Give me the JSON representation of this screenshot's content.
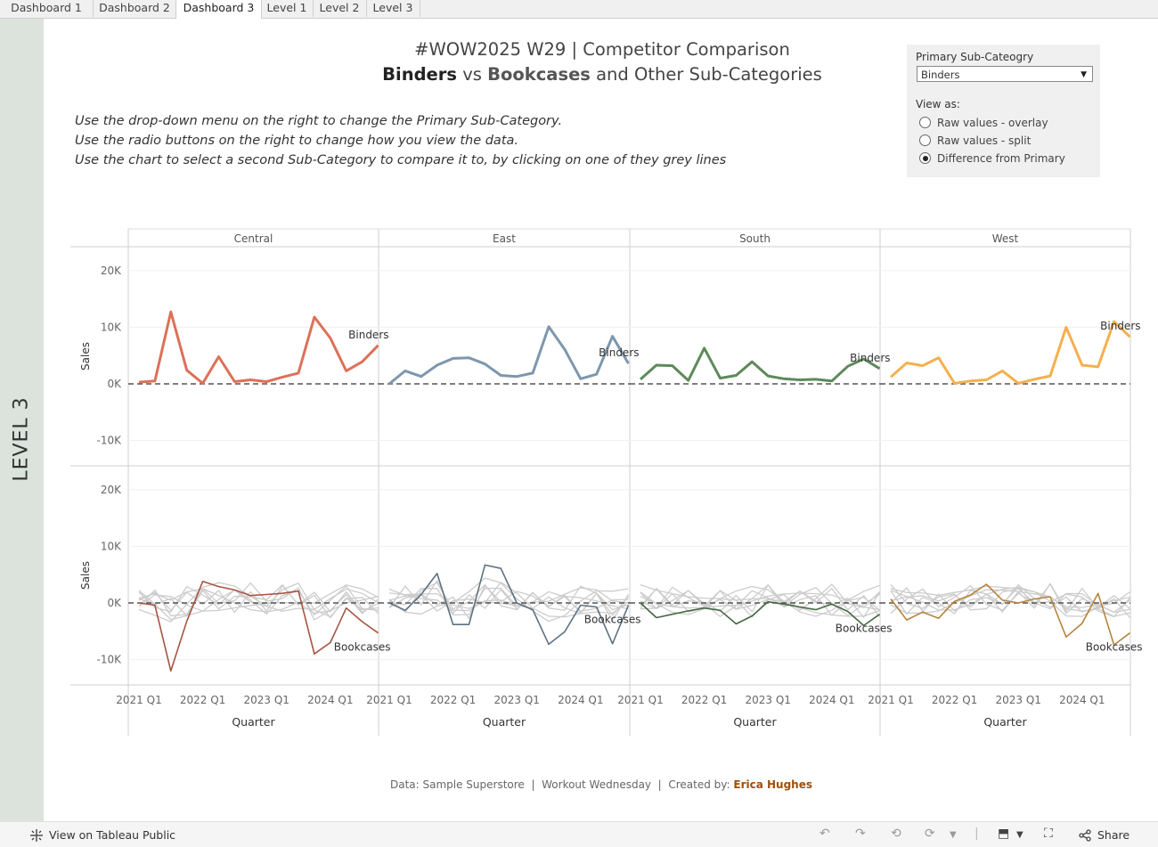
{
  "tabs": [
    "Dashboard 1",
    "Dashboard 2",
    "Dashboard 3",
    "Level 1",
    "Level 2",
    "Level 3"
  ],
  "active_tab": "Dashboard 3",
  "sidebar_label": "LEVEL 3",
  "title": {
    "line1": "#WOW2025 W29 | Competitor Comparison",
    "primary": "Binders",
    "vs": "vs",
    "secondary": "Bookcases",
    "rest": "and Other Sub-Categories"
  },
  "instructions": [
    "Use the drop-down menu on the right to change the Primary Sub-Category.",
    "Use the radio buttons on the right to change how you view the data.",
    "Use the chart to select a second Sub-Category to compare it to, by clicking on one of they grey lines"
  ],
  "controls": {
    "primary_label": "Primary Sub-Cateogry",
    "primary_value": "Binders",
    "view_label": "View as:",
    "view_options": [
      "Raw values - overlay",
      "Raw values - split",
      "Difference from Primary"
    ],
    "view_selected": 2
  },
  "footer": {
    "data": "Data: Sample Superstore",
    "wow": "Workout Wednesday",
    "created_by": "Created by:",
    "author": "Erica Hughes"
  },
  "bottom_bar": {
    "view_on": "View on Tableau Public",
    "share": "Share",
    "icons": [
      "undo-icon",
      "redo-icon",
      "revert-icon",
      "refresh-icon",
      "download-icon",
      "fullscreen-icon",
      "share-icon"
    ]
  },
  "chart_data": {
    "type": "line",
    "regions": [
      "Central",
      "East",
      "South",
      "West"
    ],
    "ylabel": "Sales",
    "xlabel": "Quarter",
    "x": [
      "2021 Q1",
      "2021 Q2",
      "2021 Q3",
      "2021 Q4",
      "2022 Q1",
      "2022 Q2",
      "2022 Q3",
      "2022 Q4",
      "2023 Q1",
      "2023 Q2",
      "2023 Q3",
      "2023 Q4",
      "2024 Q1",
      "2024 Q2",
      "2024 Q3",
      "2024 Q4"
    ],
    "x_tick_labels": [
      "2021 Q1",
      "2022 Q1",
      "2023 Q1",
      "2024 Q1"
    ],
    "y_ticks": [
      20000,
      10000,
      0,
      -10000
    ],
    "y_tick_labels": [
      "20K",
      "10K",
      "0K",
      "-10K"
    ],
    "ylim": [
      -14000,
      24000
    ],
    "colors": {
      "Central": "#dc7158",
      "East": "#7d97ad",
      "South": "#5d8a5a",
      "West": "#f4b04e",
      "grey": "#cccccc",
      "zero": "#555555"
    },
    "primary": {
      "name": "Binders",
      "Central": [
        300,
        500,
        12700,
        2400,
        100,
        4800,
        400,
        700,
        400,
        1200,
        1900,
        11800,
        8100,
        2300,
        3900,
        6800
      ],
      "East": [
        0,
        2300,
        1300,
        3300,
        4500,
        4600,
        3500,
        1500,
        1300,
        1900,
        10100,
        6100,
        900,
        1700,
        8400,
        3600
      ],
      "South": [
        800,
        3300,
        3200,
        600,
        6300,
        1000,
        1500,
        3900,
        1400,
        900,
        700,
        800,
        500,
        3100,
        4400,
        2700
      ],
      "West": [
        1200,
        3700,
        3200,
        4600,
        100,
        500,
        700,
        2300,
        100,
        800,
        1400,
        10000,
        3300,
        3000,
        11000,
        8300
      ]
    },
    "secondary": {
      "name": "Bookcases",
      "Central": [
        0,
        -400,
        -12000,
        -3200,
        3800,
        2900,
        2300,
        1300,
        1500,
        1700,
        2100,
        -9000,
        -7000,
        -900,
        -3300,
        -5300
      ],
      "East": [
        0,
        -1300,
        1500,
        5200,
        -3800,
        -3800,
        6700,
        6100,
        0,
        -1200,
        -7300,
        -5100,
        -400,
        -700,
        -7200,
        -400
      ],
      "South": [
        0,
        -2600,
        -2000,
        -1400,
        -900,
        -1300,
        -3700,
        -2300,
        200,
        -200,
        -700,
        -1200,
        -200,
        -1500,
        -4000,
        -2000
      ],
      "West": [
        700,
        -3000,
        -1600,
        -2700,
        300,
        1400,
        3300,
        500,
        0,
        700,
        1100,
        -6000,
        -3600,
        1700,
        -7400,
        -5300
      ]
    }
  }
}
